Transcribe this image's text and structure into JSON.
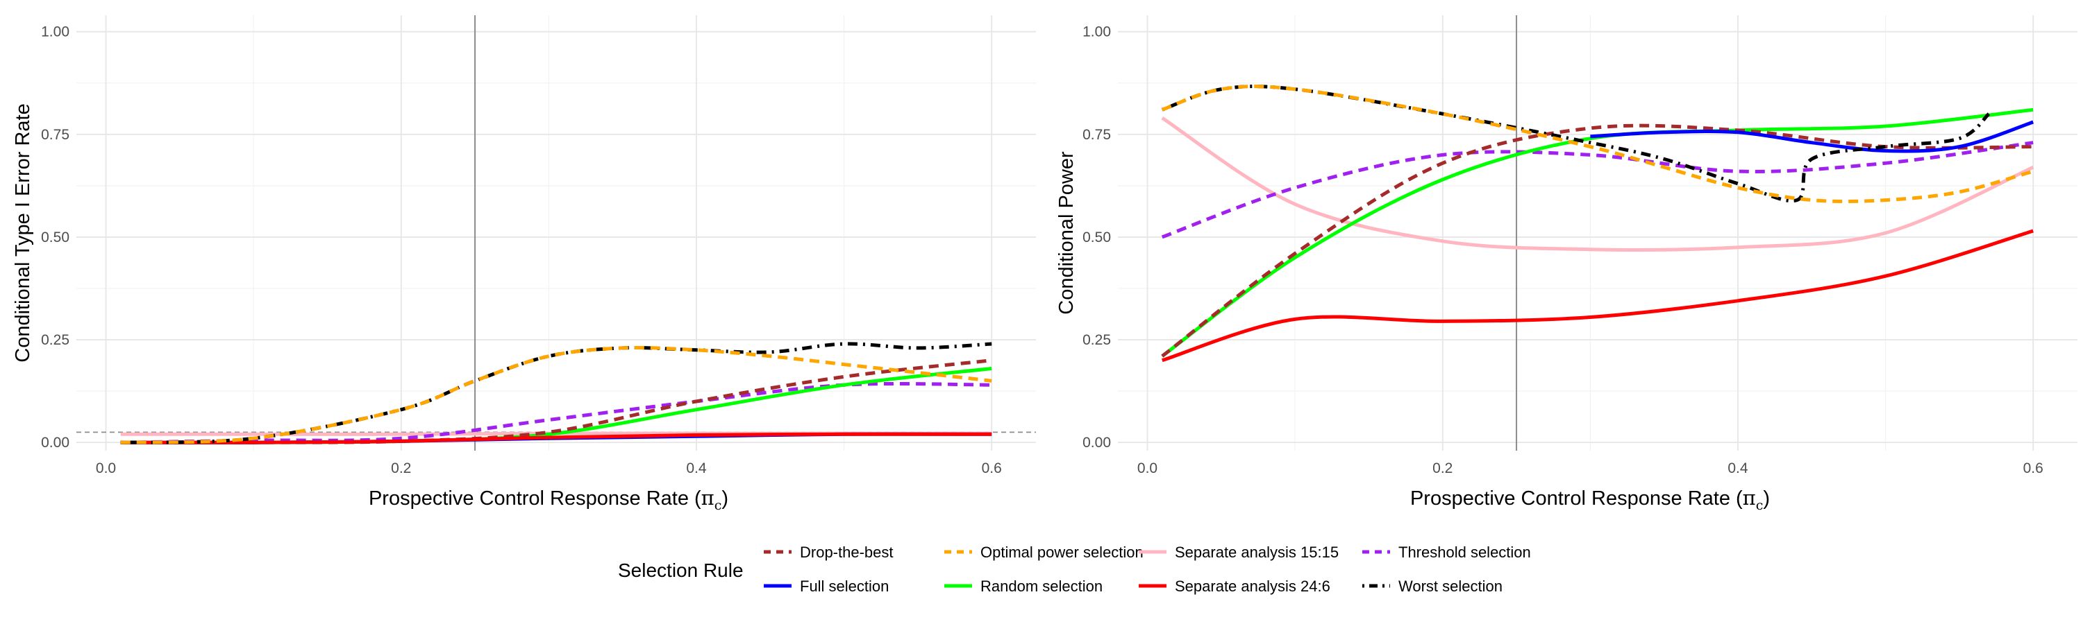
{
  "chart_data": [
    {
      "type": "line",
      "xlabel": "Prospective Control Response Rate",
      "xlabel_symbol": "π",
      "xlabel_subscript": "c",
      "ylabel": "Conditional Type I Error Rate",
      "xlim": [
        -0.02,
        0.63
      ],
      "ylim": [
        -0.02,
        1.04
      ],
      "x_ticks": [
        0.0,
        0.2,
        0.4,
        0.6
      ],
      "x_tick_labels": [
        "0.0",
        "0.2",
        "0.4",
        "0.6"
      ],
      "y_ticks": [
        0.0,
        0.25,
        0.5,
        0.75,
        1.0
      ],
      "y_tick_labels": [
        "0.00",
        "0.25",
        "0.50",
        "0.75",
        "1.00"
      ],
      "vline": 0.25,
      "hline": 0.025,
      "series": [
        {
          "name": "Separate analysis 15:15",
          "x": [
            0.01,
            0.1,
            0.2,
            0.3,
            0.4,
            0.5,
            0.6
          ],
          "values": [
            0.02,
            0.02,
            0.02,
            0.022,
            0.022,
            0.022,
            0.022
          ]
        },
        {
          "name": "Threshold selection",
          "x": [
            0.01,
            0.1,
            0.2,
            0.3,
            0.4,
            0.5,
            0.6
          ],
          "values": [
            0.0,
            0.005,
            0.01,
            0.055,
            0.1,
            0.14,
            0.14
          ]
        },
        {
          "name": "Random selection",
          "x": [
            0.01,
            0.1,
            0.2,
            0.3,
            0.4,
            0.5,
            0.6
          ],
          "values": [
            0.0,
            0.0,
            0.003,
            0.02,
            0.08,
            0.14,
            0.18
          ]
        },
        {
          "name": "Drop-the-best",
          "x": [
            0.01,
            0.1,
            0.2,
            0.3,
            0.4,
            0.5,
            0.6
          ],
          "values": [
            0.0,
            0.0,
            0.003,
            0.025,
            0.1,
            0.16,
            0.2
          ]
        },
        {
          "name": "Full selection",
          "x": [
            0.01,
            0.1,
            0.2,
            0.3,
            0.4,
            0.5,
            0.6
          ],
          "values": [
            0.0,
            0.0,
            0.003,
            0.01,
            0.015,
            0.02,
            0.02
          ]
        },
        {
          "name": "Separate analysis 24:6",
          "x": [
            0.01,
            0.1,
            0.2,
            0.3,
            0.4,
            0.5,
            0.6
          ],
          "values": [
            0.0,
            0.0,
            0.003,
            0.012,
            0.018,
            0.02,
            0.02
          ]
        },
        {
          "name": "Worst selection",
          "x": [
            0.01,
            0.1,
            0.2,
            0.25,
            0.3,
            0.35,
            0.4,
            0.45,
            0.5,
            0.55,
            0.6
          ],
          "values": [
            0.0,
            0.01,
            0.08,
            0.15,
            0.21,
            0.23,
            0.225,
            0.22,
            0.24,
            0.23,
            0.24
          ]
        },
        {
          "name": "Optimal power selection",
          "x": [
            0.01,
            0.1,
            0.2,
            0.25,
            0.3,
            0.35,
            0.4,
            0.45,
            0.5,
            0.55,
            0.6
          ],
          "values": [
            0.0,
            0.01,
            0.08,
            0.15,
            0.21,
            0.23,
            0.225,
            0.21,
            0.19,
            0.17,
            0.15
          ]
        }
      ]
    },
    {
      "type": "line",
      "xlabel": "Prospective Control Response Rate",
      "xlabel_symbol": "π",
      "xlabel_subscript": "c",
      "ylabel": "Conditional Power",
      "xlim": [
        -0.02,
        0.63
      ],
      "ylim": [
        -0.02,
        1.04
      ],
      "x_ticks": [
        0.0,
        0.2,
        0.4,
        0.6
      ],
      "x_tick_labels": [
        "0.0",
        "0.2",
        "0.4",
        "0.6"
      ],
      "y_ticks": [
        0.0,
        0.25,
        0.5,
        0.75,
        1.0
      ],
      "y_tick_labels": [
        "0.00",
        "0.25",
        "0.50",
        "0.75",
        "1.00"
      ],
      "vline": 0.25,
      "series": [
        {
          "name": "Separate analysis 15:15",
          "x": [
            0.01,
            0.1,
            0.2,
            0.3,
            0.4,
            0.5,
            0.6
          ],
          "values": [
            0.79,
            0.58,
            0.49,
            0.47,
            0.475,
            0.51,
            0.67
          ]
        },
        {
          "name": "Threshold selection",
          "x": [
            0.01,
            0.1,
            0.2,
            0.3,
            0.4,
            0.5,
            0.6
          ],
          "values": [
            0.5,
            0.62,
            0.7,
            0.7,
            0.66,
            0.68,
            0.73
          ]
        },
        {
          "name": "Random selection",
          "x": [
            0.01,
            0.1,
            0.2,
            0.3,
            0.4,
            0.5,
            0.6
          ],
          "values": [
            0.21,
            0.45,
            0.64,
            0.74,
            0.76,
            0.77,
            0.81
          ]
        },
        {
          "name": "Drop-the-best",
          "x": [
            0.01,
            0.1,
            0.2,
            0.3,
            0.4,
            0.5,
            0.6
          ],
          "values": [
            0.21,
            0.46,
            0.68,
            0.765,
            0.76,
            0.72,
            0.72
          ]
        },
        {
          "name": "Full selection",
          "x": [
            0.3,
            0.35,
            0.4,
            0.45,
            0.5,
            0.55,
            0.6
          ],
          "values": [
            0.745,
            0.755,
            0.755,
            0.73,
            0.71,
            0.72,
            0.78
          ]
        },
        {
          "name": "Separate analysis 24:6",
          "x": [
            0.01,
            0.1,
            0.2,
            0.3,
            0.4,
            0.5,
            0.6
          ],
          "values": [
            0.2,
            0.3,
            0.295,
            0.305,
            0.345,
            0.405,
            0.515
          ]
        },
        {
          "name": "Worst selection",
          "x": [
            0.01,
            0.05,
            0.1,
            0.2,
            0.3,
            0.35,
            0.4,
            0.44,
            0.45,
            0.5,
            0.55,
            0.57
          ],
          "values": [
            0.81,
            0.86,
            0.86,
            0.8,
            0.73,
            0.69,
            0.63,
            0.59,
            0.69,
            0.72,
            0.74,
            0.8
          ]
        },
        {
          "name": "Optimal power selection",
          "x": [
            0.01,
            0.05,
            0.1,
            0.2,
            0.3,
            0.35,
            0.4,
            0.45,
            0.5,
            0.55,
            0.6
          ],
          "values": [
            0.81,
            0.86,
            0.86,
            0.8,
            0.72,
            0.67,
            0.62,
            0.59,
            0.59,
            0.61,
            0.66
          ]
        }
      ]
    }
  ],
  "legend": {
    "title": "Selection Rule",
    "items": [
      {
        "label": "Drop-the-best",
        "color": "#a52a2a",
        "style": "dashed"
      },
      {
        "label": "Optimal power selection",
        "color": "#ffa500",
        "style": "dashed"
      },
      {
        "label": "Separate analysis 15:15",
        "color": "#ffb6c1",
        "style": "solid"
      },
      {
        "label": "Threshold selection",
        "color": "#a020f0",
        "style": "dashed"
      },
      {
        "label": "Full selection",
        "color": "#0000ff",
        "style": "solid"
      },
      {
        "label": "Random selection",
        "color": "#00ff00",
        "style": "solid"
      },
      {
        "label": "Separate analysis 24:6",
        "color": "#ff0000",
        "style": "solid"
      },
      {
        "label": "Worst selection",
        "color": "#000000",
        "style": "dotdash"
      }
    ]
  }
}
